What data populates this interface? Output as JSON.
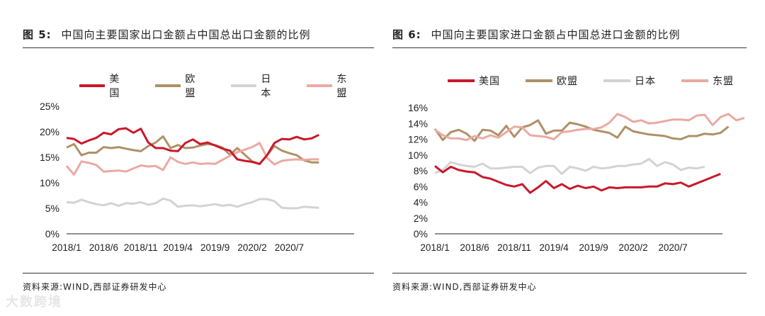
{
  "charts": [
    {
      "fig_label": "图 5:",
      "title": "中国向主要国家出口金额占中国总出口金额的比例",
      "source": "资料来源:WIND,西部证券研发中心"
    },
    {
      "fig_label": "图 6:",
      "title": "中国向主要国家进口金额占中国总进口金额的比例",
      "source": "资料来源:WIND,西部证券研发中心"
    }
  ],
  "watermark": "大数跨境",
  "colors": {
    "us": "#c8192a",
    "eu": "#b09067",
    "jp": "#d3d3d3",
    "asean": "#eba9a3"
  },
  "chart_data": [
    {
      "type": "line",
      "title": "中国向主要国家出口金额占中国总出口金额的比例",
      "x_ticks": [
        "2018/1",
        "2018/6",
        "2018/11",
        "2019/4",
        "2019/9",
        "2020/2",
        "2020/7"
      ],
      "x_tick_index": [
        0,
        5,
        10,
        15,
        20,
        25,
        30
      ],
      "y_ticks": [
        "0%",
        "5%",
        "10%",
        "15%",
        "20%",
        "25%"
      ],
      "ylim": [
        0,
        25
      ],
      "series": [
        {
          "name": "美国",
          "key": "us",
          "values": [
            18.8,
            18.6,
            17.7,
            18.3,
            18.8,
            19.8,
            19.5,
            20.5,
            20.7,
            19.8,
            20.6,
            17.9,
            16.8,
            16.8,
            16.3,
            16.2,
            17.8,
            18.5,
            17.6,
            17.9,
            17.3,
            16.7,
            16.3,
            14.6,
            14.3,
            14.1,
            13.7,
            15.4,
            17.8,
            18.6,
            18.5,
            19.0,
            18.5,
            18.7,
            19.4
          ]
        },
        {
          "name": "欧盟",
          "key": "eu",
          "values": [
            16.9,
            17.6,
            15.4,
            15.9,
            15.9,
            17.0,
            16.8,
            17.0,
            16.7,
            16.4,
            16.2,
            17.2,
            17.9,
            19.1,
            16.8,
            17.4,
            16.8,
            16.9,
            17.3,
            17.6,
            17.4,
            16.9,
            15.5,
            16.8,
            15.5,
            14.2,
            13.7,
            15.4,
            17.2,
            16.3,
            15.8,
            15.4,
            14.4,
            14.0,
            14.0
          ]
        },
        {
          "name": "日本",
          "key": "jp",
          "values": [
            6.2,
            6.1,
            6.7,
            6.2,
            5.8,
            5.6,
            6.0,
            5.5,
            6.0,
            5.9,
            6.2,
            5.7,
            6.0,
            6.9,
            6.5,
            5.3,
            5.5,
            5.6,
            5.4,
            5.6,
            5.8,
            5.5,
            5.7,
            5.3,
            5.8,
            6.2,
            6.8,
            6.8,
            6.4,
            5.1,
            5.0,
            5.0,
            5.3,
            5.2,
            5.1
          ]
        },
        {
          "name": "东盟",
          "key": "asean",
          "values": [
            13.3,
            11.6,
            14.2,
            13.9,
            13.5,
            12.2,
            12.3,
            12.4,
            12.2,
            12.8,
            13.4,
            13.2,
            13.3,
            12.5,
            15.0,
            14.1,
            13.7,
            14.0,
            13.7,
            13.8,
            13.7,
            14.5,
            15.3,
            16.0,
            16.5,
            17.0,
            17.8,
            14.9,
            13.6,
            14.3,
            14.5,
            14.6,
            14.5,
            14.6,
            14.6
          ]
        }
      ],
      "legend": [
        "美国",
        "欧盟",
        "日本",
        "东盟"
      ]
    },
    {
      "type": "line",
      "title": "中国向主要国家进口金额占中国总进口金额的比例",
      "x_ticks": [
        "2018/1",
        "2018/6",
        "2018/11",
        "2019/4",
        "2019/9",
        "2020/2",
        "2020/7"
      ],
      "x_tick_index": [
        0,
        5,
        10,
        15,
        20,
        25,
        30
      ],
      "y_ticks": [
        "0%",
        "2%",
        "4%",
        "6%",
        "8%",
        "10%",
        "12%",
        "14%",
        "16%"
      ],
      "ylim": [
        0,
        16
      ],
      "series": [
        {
          "name": "美国",
          "key": "us",
          "values": [
            8.6,
            7.8,
            8.5,
            8.1,
            7.9,
            7.8,
            7.2,
            7.0,
            6.6,
            6.2,
            6.0,
            6.3,
            5.2,
            5.9,
            6.7,
            5.8,
            6.3,
            5.7,
            6.1,
            5.8,
            6.0,
            5.5,
            5.9,
            5.8,
            5.9,
            5.9,
            5.9,
            6.0,
            6.0,
            6.4,
            6.3,
            6.5,
            6.0,
            6.4,
            6.8,
            7.2,
            7.6
          ]
        },
        {
          "name": "欧盟",
          "key": "eu",
          "values": [
            13.3,
            11.9,
            12.9,
            13.2,
            12.7,
            11.8,
            13.2,
            13.1,
            12.5,
            13.7,
            12.3,
            13.5,
            13.8,
            14.4,
            12.7,
            13.1,
            13.1,
            14.1,
            13.9,
            13.6,
            13.2,
            13.0,
            12.8,
            12.2,
            13.6,
            13.0,
            12.8,
            12.6,
            12.5,
            12.4,
            12.1,
            12.0,
            12.4,
            12.4,
            12.7,
            12.6,
            12.8,
            13.6
          ]
        },
        {
          "name": "日本",
          "key": "jp",
          "values": [
            7.7,
            8.1,
            9.1,
            8.8,
            8.6,
            8.5,
            8.9,
            8.3,
            8.3,
            8.4,
            8.5,
            8.5,
            7.7,
            8.4,
            8.6,
            8.6,
            7.6,
            8.5,
            8.3,
            8.0,
            8.5,
            8.3,
            8.4,
            8.6,
            8.6,
            8.8,
            8.9,
            9.5,
            8.6,
            9.1,
            8.8,
            8.1,
            8.4,
            8.3,
            8.5
          ]
        },
        {
          "name": "东盟",
          "key": "asean",
          "values": [
            13.2,
            12.5,
            12.1,
            12.1,
            11.9,
            12.4,
            12.1,
            12.5,
            12.2,
            12.9,
            13.6,
            13.5,
            12.5,
            12.4,
            12.3,
            12.0,
            12.9,
            13.0,
            13.2,
            13.3,
            13.3,
            13.5,
            14.1,
            15.2,
            14.8,
            14.2,
            14.4,
            14.0,
            14.1,
            14.3,
            14.5,
            14.5,
            14.4,
            15.0,
            15.1,
            13.8,
            14.8,
            15.2,
            14.4,
            14.7
          ]
        }
      ],
      "legend": [
        "美国",
        "欧盟",
        "日本",
        "东盟"
      ]
    }
  ]
}
